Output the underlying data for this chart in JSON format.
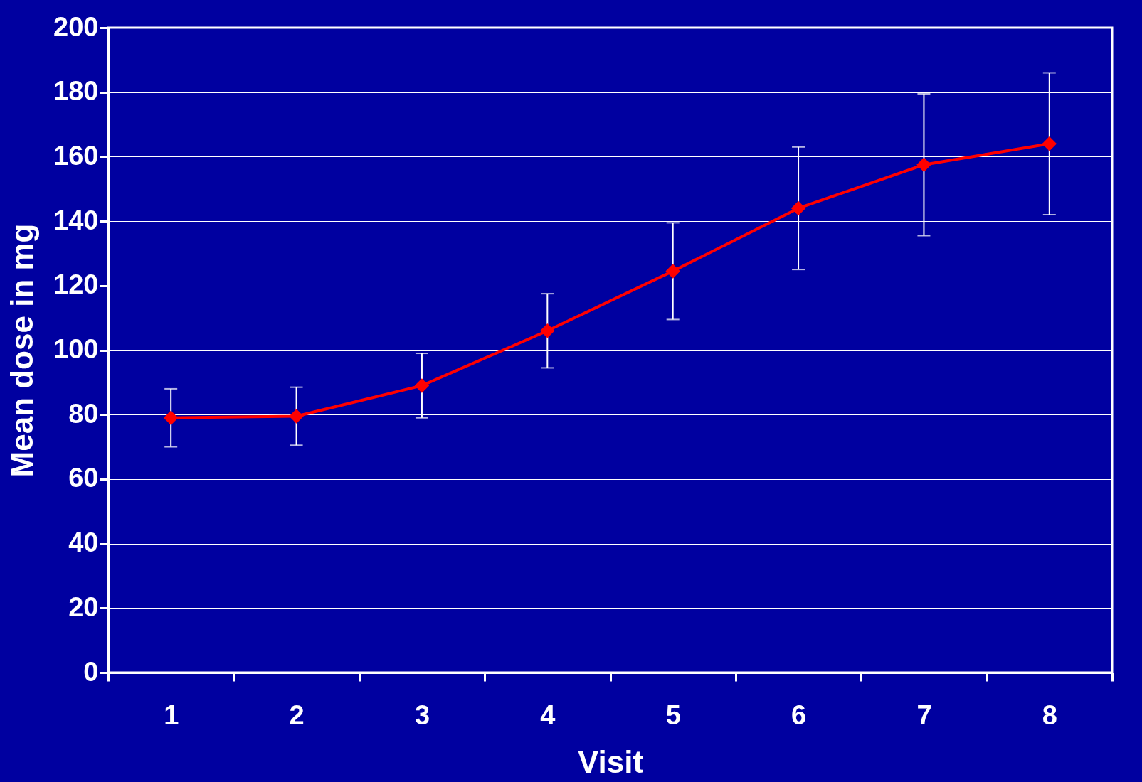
{
  "chart_data": {
    "type": "line",
    "xlabel": "Visit",
    "ylabel": "Mean dose in mg",
    "categories": [
      "1",
      "2",
      "3",
      "4",
      "5",
      "6",
      "7",
      "8"
    ],
    "series": [
      {
        "color": "#ff0000",
        "values": [
          79,
          79.5,
          89,
          106,
          124.5,
          144,
          157.5,
          164
        ],
        "errors": [
          9,
          9,
          10,
          11.5,
          15,
          19,
          22,
          22
        ]
      }
    ],
    "ylim": [
      0,
      200
    ],
    "yticks": [
      0,
      20,
      40,
      60,
      80,
      100,
      120,
      140,
      160,
      180,
      200
    ],
    "grid": "y",
    "marker": "diamond",
    "line_style": "solid"
  }
}
